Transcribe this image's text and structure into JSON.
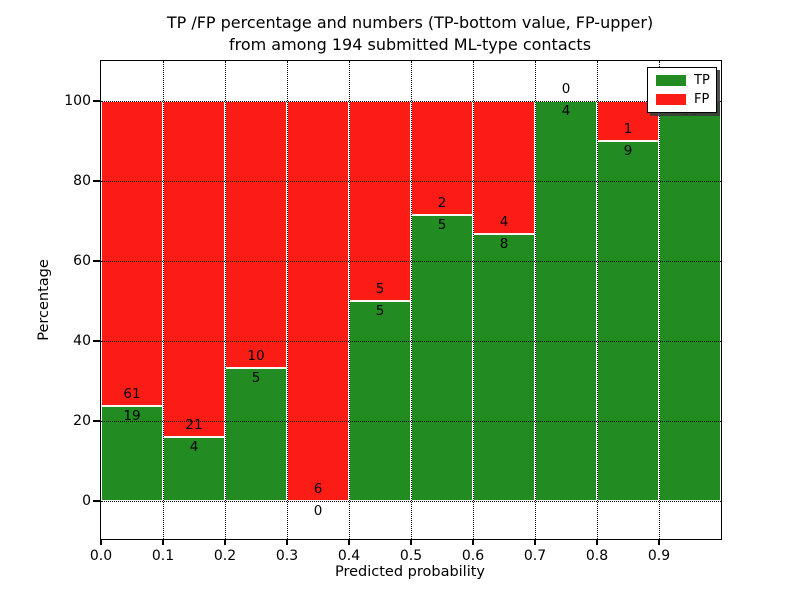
{
  "title": {
    "line1": "TP /FP percentage and numbers (TP-bottom value, FP-upper)",
    "line2": "from among 194 submitted ML-type contacts"
  },
  "axes": {
    "xlabel": "Predicted probability",
    "ylabel": "Percentage",
    "yticks": [
      0,
      20,
      40,
      60,
      80,
      100
    ],
    "xticks": [
      "0.0",
      "0.1",
      "0.2",
      "0.3",
      "0.4",
      "0.5",
      "0.6",
      "0.7",
      "0.8",
      "0.9"
    ]
  },
  "legend": {
    "position": "upper right",
    "items": [
      {
        "label": "TP",
        "color": "#228b22"
      },
      {
        "label": "FP",
        "color": "#fb1c15"
      }
    ]
  },
  "chart_data": {
    "type": "bar",
    "stacked": true,
    "normalized": "each bin scaled to 100%; numeric labels show raw counts (TP below boundary, FP above)",
    "title": "TP /FP percentage and numbers (TP-bottom value, FP-upper) from among 194 submitted ML-type contacts",
    "xlabel": "Predicted probability",
    "ylabel": "Percentage",
    "categories": [
      "0.0-0.1",
      "0.1-0.2",
      "0.2-0.3",
      "0.3-0.4",
      "0.4-0.5",
      "0.5-0.6",
      "0.6-0.7",
      "0.7-0.8",
      "0.8-0.9",
      "0.9-1.0"
    ],
    "bin_start": [
      0.0,
      0.1,
      0.2,
      0.3,
      0.4,
      0.5,
      0.6,
      0.7,
      0.8,
      0.9
    ],
    "series": [
      {
        "name": "TP",
        "color": "#228b22",
        "stack_position": "bottom",
        "counts": [
          19,
          4,
          5,
          0,
          5,
          5,
          8,
          4,
          9,
          25
        ]
      },
      {
        "name": "FP",
        "color": "#fb1c15",
        "stack_position": "top",
        "counts": [
          61,
          21,
          10,
          6,
          5,
          2,
          4,
          0,
          1,
          0
        ]
      }
    ],
    "tp_percent": [
      23.75,
      16.0,
      33.33,
      0.0,
      50.0,
      71.43,
      66.67,
      100.0,
      90.0,
      100.0
    ],
    "total_contacts": 194,
    "ylim": [
      -10,
      110
    ],
    "xlim": [
      0,
      1
    ],
    "grid": {
      "axis": "both",
      "style": "dotted",
      "color": "#000000"
    },
    "bar_edge_color": "#ffffff",
    "legend_position": "upper right"
  }
}
